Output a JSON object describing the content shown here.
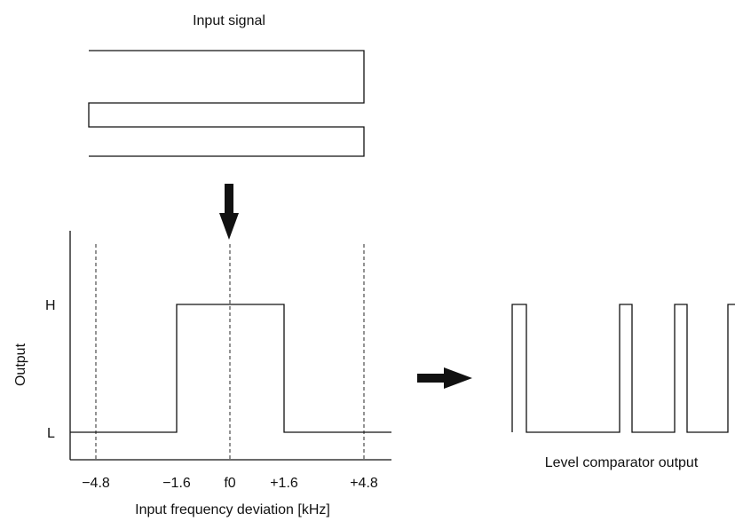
{
  "input_label": "Input signal",
  "y_axis_label": "Output",
  "level_high": "H",
  "level_low": "L",
  "x_axis_title": "Input frequency deviation [kHz]",
  "x_ticks": [
    "−4.8",
    "−1.6",
    "f0",
    "+1.6",
    "+4.8"
  ],
  "output_label": "Level comparator output",
  "chart_data": {
    "type": "line",
    "xlabel": "Input frequency deviation [kHz]",
    "ylabel": "Output",
    "x_ticks": [
      "−4.8",
      "−1.6",
      "f0",
      "+1.6",
      "+4.8"
    ],
    "y_levels": [
      "L",
      "H"
    ],
    "series": [
      {
        "x": [
          -5.6,
          -1.6,
          -1.6,
          1.6,
          1.6,
          6.5
        ],
        "y": [
          "L",
          "L",
          "H",
          "H",
          "L",
          "L"
        ]
      }
    ]
  }
}
